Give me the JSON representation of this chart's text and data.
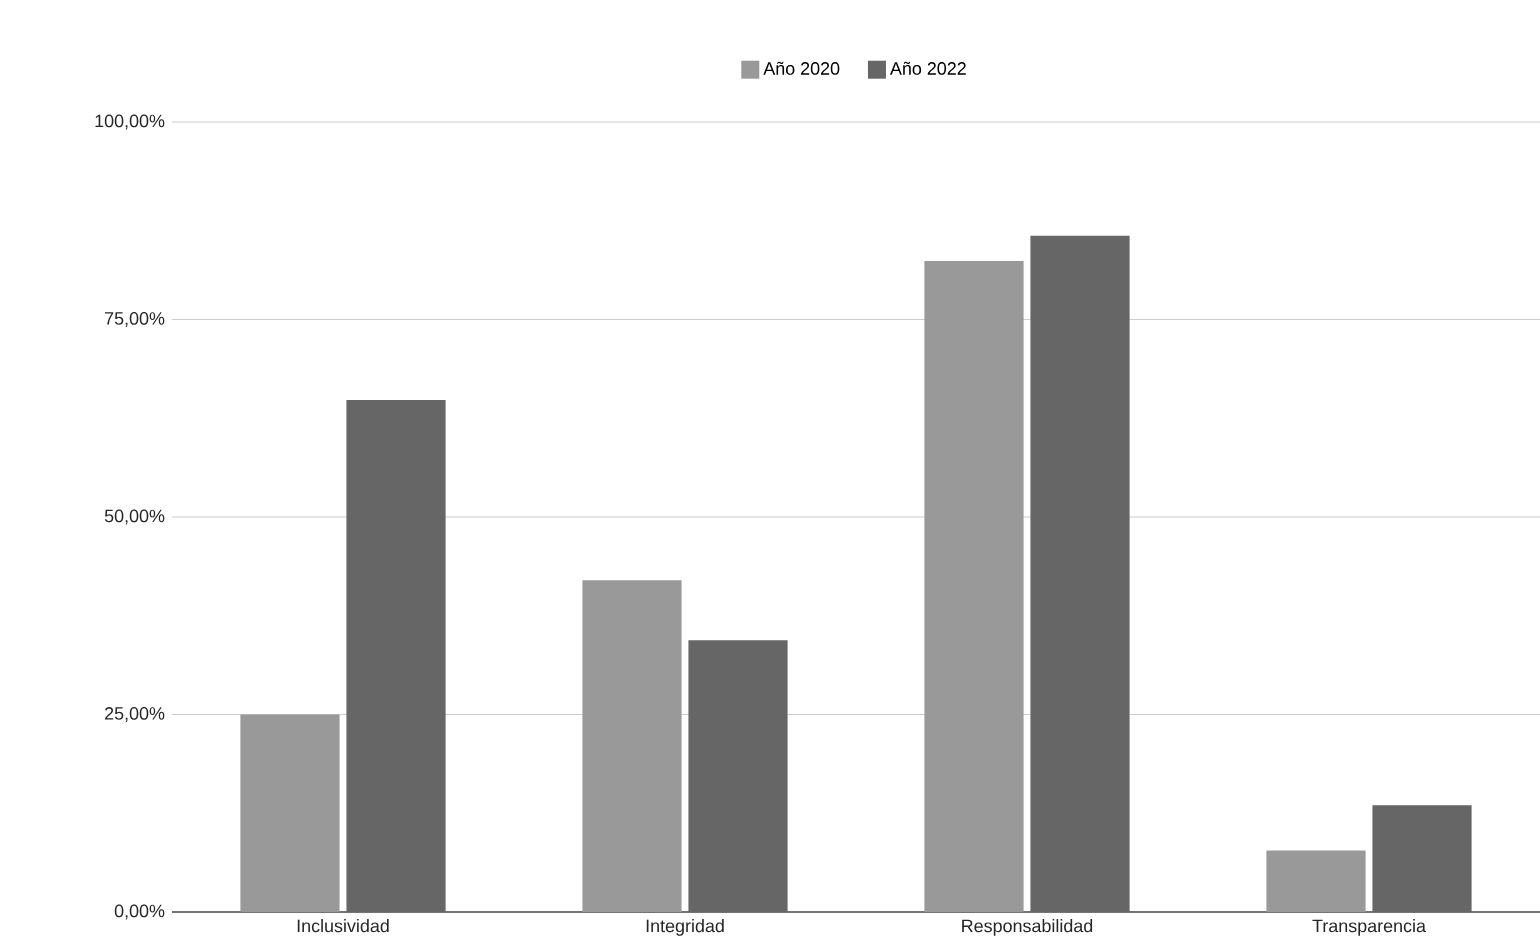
{
  "chart_data": {
    "type": "bar",
    "categories": [
      "Inclusividad",
      "Integridad",
      "Responsabilidad",
      "Transparencia"
    ],
    "series": [
      {
        "name": "Año 2020",
        "color": "#999999",
        "values": [
          25.0,
          42.0,
          82.4,
          7.8
        ]
      },
      {
        "name": "Año 2022",
        "color": "#666666",
        "values": [
          64.8,
          34.4,
          85.6,
          13.5
        ]
      }
    ],
    "ylim": [
      0,
      100
    ],
    "yticks": [
      {
        "value": 0,
        "label": "0,00%"
      },
      {
        "value": 25,
        "label": "25,00%"
      },
      {
        "value": 50,
        "label": "50,00%"
      },
      {
        "value": 75,
        "label": "75,00%"
      },
      {
        "value": 100,
        "label": "100,00%"
      }
    ],
    "grid": "y",
    "legend": "top"
  }
}
